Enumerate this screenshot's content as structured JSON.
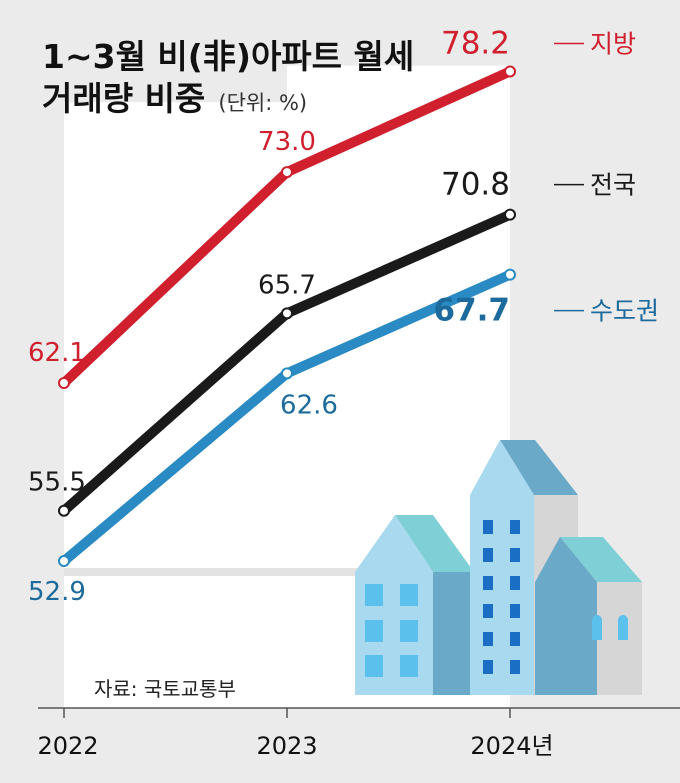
{
  "title_line1": "1~3월 비(非)아파트 월세",
  "title_line2": "거래량 비중",
  "unit_note": "(단위: %)",
  "source": "자료: 국토교통부",
  "colors": {
    "background": "#ebebeb",
    "plot_area": "#ffffff",
    "local": "#d0202e",
    "national": "#1a1a1a",
    "capital": "#2a8ac4",
    "capital_label": "#1d6a9c"
  },
  "chart_data": {
    "type": "line",
    "categories": [
      "2022",
      "2023",
      "2024년"
    ],
    "series": [
      {
        "name": "지방",
        "values": [
          62.1,
          73.0,
          78.2
        ],
        "labels": [
          "62.1",
          "73.0",
          "78.2"
        ]
      },
      {
        "name": "전국",
        "values": [
          55.5,
          65.7,
          70.8
        ],
        "labels": [
          "55.5",
          "65.7",
          "70.8"
        ]
      },
      {
        "name": "수도권",
        "values": [
          52.9,
          62.6,
          67.7
        ],
        "labels": [
          "52.9",
          "62.6",
          "67.7"
        ]
      }
    ]
  },
  "illustration": "city-buildings"
}
